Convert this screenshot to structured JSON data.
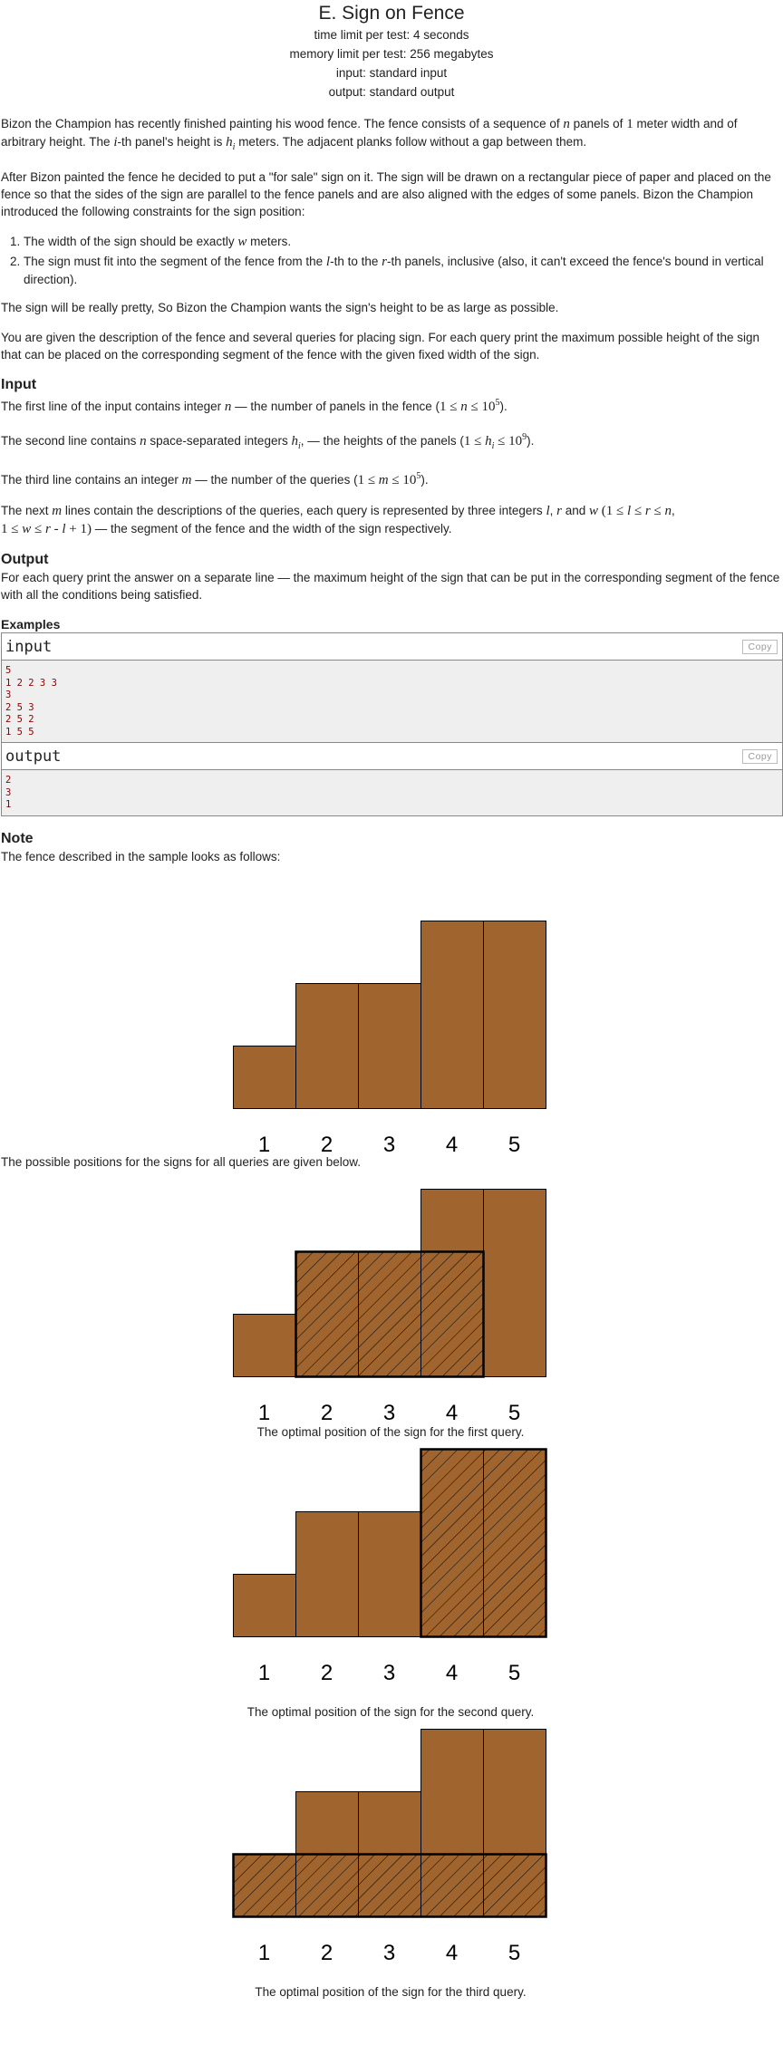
{
  "header": {
    "title": "E. Sign on Fence",
    "time_limit": "time limit per test: 4 seconds",
    "memory_limit": "memory limit per test: 256 megabytes",
    "input": "input: standard input",
    "output": "output: standard output"
  },
  "statement": {
    "p1a": "Bizon the Champion has recently finished painting his wood fence. The fence consists of a sequence of ",
    "p1b": " panels of ",
    "p1c": " meter width and of arbitrary height. The ",
    "p1d": "-th panel's height is ",
    "p1e": " meters. The adjacent planks follow without a gap between them.",
    "p2": "After Bizon painted the fence he decided to put a \"for sale\" sign on it. The sign will be drawn on a rectangular piece of paper and placed on the fence so that the sides of the sign are parallel to the fence panels and are also aligned with the edges of some panels. Bizon the Champion introduced the following constraints for the sign position:",
    "li1a": "The width of the sign should be exactly ",
    "li1b": " meters.",
    "li2a": "The sign must fit into the segment of the fence from the ",
    "li2b": "-th to the ",
    "li2c": "-th panels, inclusive (also, it can't exceed the fence's bound in vertical direction).",
    "p3": "The sign will be really pretty, So Bizon the Champion wants the sign's height to be as large as possible.",
    "p4": "You are given the description of the fence and several queries for placing sign. For each query print the maximum possible height of the sign that can be placed on the corresponding segment of the fence with the given fixed width of the sign."
  },
  "input_section": {
    "title": "Input",
    "l1a": "The first line of the input contains integer ",
    "l1b": " — the number of panels in the fence (",
    "l1c": ").",
    "l2a": "The second line contains ",
    "l2b": " space-separated integers ",
    "l2c": ", — the heights of the panels (",
    "l2d": ").",
    "l3a": "The third line contains an integer ",
    "l3b": " — the number of the queries (",
    "l3c": ").",
    "l4a": "The next ",
    "l4b": " lines contain the descriptions of the queries, each query is represented by three integers ",
    "l4c": " and ",
    "l4d": " — the segment of the fence and the width of the sign respectively."
  },
  "output_section": {
    "title": "Output",
    "text": "For each query print the answer on a separate line — the maximum height of the sign that can be put in the corresponding segment of the fence with all the conditions being satisfied."
  },
  "examples": {
    "title": "Examples",
    "input_label": "input",
    "output_label": "output",
    "copy_label": "Copy",
    "input_text": "5\n1 2 2 3 3\n3\n2 5 3\n2 5 2\n1 5 5",
    "output_text": "2\n3\n1"
  },
  "note": {
    "title": "Note",
    "intro": "The fence described in the sample looks as follows:",
    "positions": "The possible positions for the signs for all queries are given below.",
    "caption1": "The optimal position of the sign for the first query.",
    "caption2": "The optimal position of the sign for the second query.",
    "caption3": "The optimal position of the sign for the third query."
  },
  "fence": {
    "heights": [
      1,
      2,
      2,
      3,
      3
    ],
    "labels": [
      "1",
      "2",
      "3",
      "4",
      "5"
    ],
    "fill_color": "#a0652f",
    "hatch_color": "#000000"
  }
}
